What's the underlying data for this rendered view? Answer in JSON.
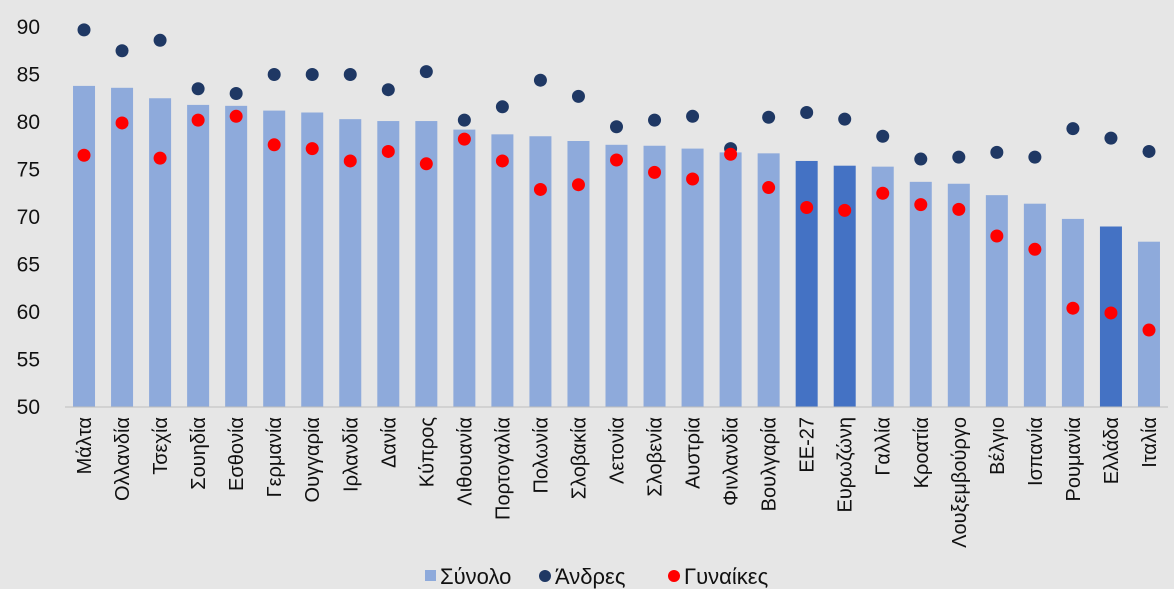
{
  "chart_data": {
    "type": "bar",
    "title": "",
    "xlabel": "",
    "ylabel": "",
    "ylim": [
      50,
      90
    ],
    "yticks": [
      "50",
      "55",
      "60",
      "65",
      "70",
      "75",
      "80",
      "85",
      "90"
    ],
    "grid": false,
    "legend_position": "bottom",
    "colors": {
      "bar": "#8eaadb",
      "bar_highlight": "#4472c4",
      "men": "#1f3864",
      "women": "#ff0000",
      "background": "#e6e6e6"
    },
    "highlight_categories": [
      "ΕΕ-27",
      "Ευρωζώνη",
      "Ελλάδα"
    ],
    "categories": [
      "Μάλτα",
      "Ολλανδία",
      "Τσεχία",
      "Σουηδία",
      "Εσθονία",
      "Γερμανία",
      "Ουγγαρία",
      "Ιρλανδία",
      "Δανία",
      "Κύπρος",
      "Λιθουανία",
      "Πορτογαλία",
      "Πολωνία",
      "Σλοβακία",
      "Λετονία",
      "Σλοβενία",
      "Αυστρία",
      "Φινλανδία",
      "Βουλγαρία",
      "ΕΕ-27",
      "Ευρωζώνη",
      "Γαλλία",
      "Κροατία",
      "Λουξεμβούργο",
      "Βέλγιο",
      "Ισπανία",
      "Ρουμανία",
      "Ελλάδα",
      "Ιταλία"
    ],
    "series": [
      {
        "name": "Σύνολο",
        "kind": "bar",
        "values": [
          83.8,
          83.6,
          82.5,
          81.8,
          81.7,
          81.2,
          81.0,
          80.3,
          80.1,
          80.1,
          79.2,
          78.7,
          78.5,
          78.0,
          77.6,
          77.5,
          77.2,
          76.8,
          76.7,
          75.9,
          75.4,
          75.3,
          73.7,
          73.5,
          72.3,
          71.4,
          69.8,
          69.0,
          67.4
        ]
      },
      {
        "name": "Άνδρες",
        "kind": "dot",
        "values": [
          89.7,
          87.5,
          88.6,
          83.5,
          83.0,
          85.0,
          85.0,
          85.0,
          83.4,
          85.3,
          80.2,
          81.6,
          84.4,
          82.7,
          79.5,
          80.2,
          80.6,
          77.2,
          80.5,
          81.0,
          80.3,
          78.5,
          76.1,
          76.3,
          76.8,
          76.3,
          79.3,
          78.3,
          76.9
        ]
      },
      {
        "name": "Γυναίκες",
        "kind": "dot",
        "values": [
          76.5,
          79.9,
          76.2,
          80.2,
          80.6,
          77.6,
          77.2,
          75.9,
          76.9,
          75.6,
          78.2,
          75.9,
          72.9,
          73.4,
          76.0,
          74.7,
          74.0,
          76.6,
          73.1,
          71.0,
          70.7,
          72.5,
          71.3,
          70.8,
          68.0,
          66.6,
          60.4,
          59.9,
          58.1
        ]
      }
    ]
  }
}
